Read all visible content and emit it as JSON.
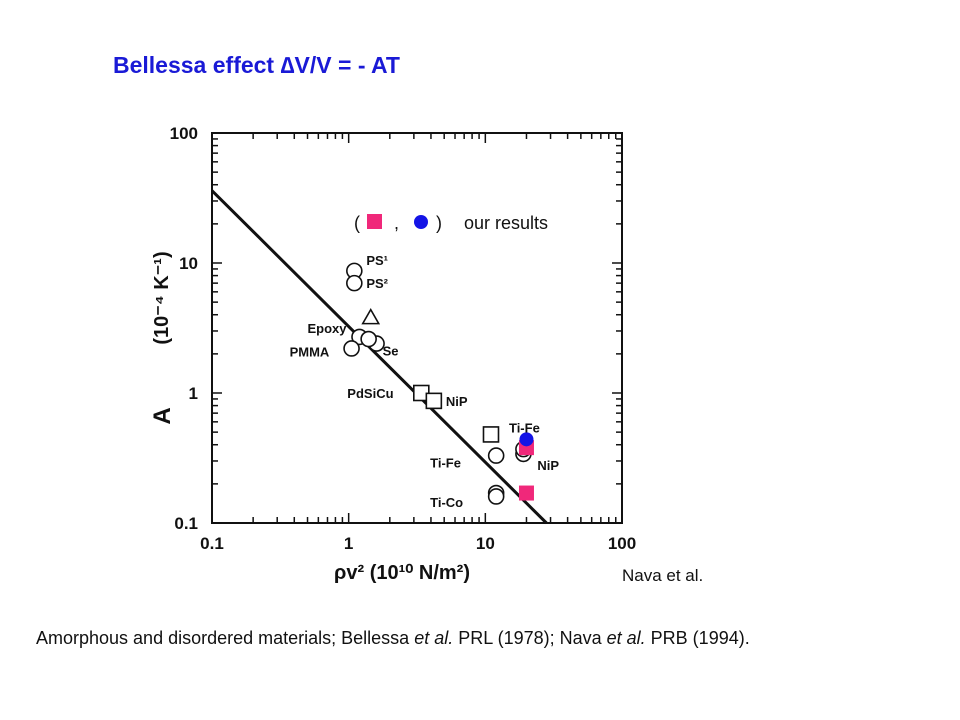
{
  "title": "Bellessa effect  ∆V/V = - AT",
  "chart_data": {
    "type": "scatter",
    "x_scale": "log",
    "y_scale": "log",
    "xlim": [
      0.1,
      100
    ],
    "ylim": [
      0.1,
      100
    ],
    "xticks": [
      {
        "value": 0.1,
        "label": "0.1"
      },
      {
        "value": 1,
        "label": "1"
      },
      {
        "value": 10,
        "label": "10"
      },
      {
        "value": 100,
        "label": "100"
      }
    ],
    "yticks": [
      {
        "value": 0.1,
        "label": "0.1"
      },
      {
        "value": 1,
        "label": "1"
      },
      {
        "value": 10,
        "label": "10"
      },
      {
        "value": 100,
        "label": "100"
      }
    ],
    "xlabel": "ρv² (10¹⁰ N/m²)",
    "ylabel": "(10⁻⁴ K⁻¹)",
    "ylabel_symbol": "A",
    "grid": false,
    "legend_text": {
      "open": "(",
      "comma": ",",
      "close": ")",
      "label": "our results"
    },
    "fit_line": {
      "x": [
        0.1,
        28
      ],
      "y": [
        36,
        0.1
      ]
    },
    "series": [
      {
        "marker": "circle-open",
        "points": [
          {
            "x": 1.1,
            "y": 8.7,
            "label": "PS¹"
          },
          {
            "x": 1.1,
            "y": 7.0,
            "label": "PS²"
          },
          {
            "x": 1.2,
            "y": 2.7,
            "label": "Epoxy"
          },
          {
            "x": 1.05,
            "y": 2.2,
            "label": "PMMA"
          },
          {
            "x": 1.6,
            "y": 2.4,
            "label": "Se"
          },
          {
            "x": 1.4,
            "y": 2.6,
            "label": ""
          },
          {
            "x": 12,
            "y": 0.33,
            "label": "Ti-Fe"
          },
          {
            "x": 19,
            "y": 0.34,
            "label": "NiP"
          },
          {
            "x": 19,
            "y": 0.37,
            "label": ""
          },
          {
            "x": 12,
            "y": 0.17,
            "label": "Ti-Co"
          },
          {
            "x": 12,
            "y": 0.16,
            "label": ""
          }
        ]
      },
      {
        "marker": "square-open",
        "points": [
          {
            "x": 3.4,
            "y": 1.0,
            "label": "PdSiCu"
          },
          {
            "x": 4.2,
            "y": 0.87,
            "label": "NiP"
          },
          {
            "x": 11,
            "y": 0.48,
            "label": "Ti-Fe"
          }
        ]
      },
      {
        "marker": "triangle-open",
        "points": [
          {
            "x": 1.45,
            "y": 3.8,
            "label": ""
          }
        ]
      },
      {
        "marker": "square-filled",
        "color": "#f0287a",
        "points": [
          {
            "x": 20,
            "y": 0.38,
            "label": ""
          },
          {
            "x": 20,
            "y": 0.17,
            "label": ""
          }
        ]
      },
      {
        "marker": "circle-filled",
        "color": "#1414e6",
        "points": [
          {
            "x": 20,
            "y": 0.44,
            "label": ""
          }
        ]
      }
    ]
  },
  "credit": "Nava et al.",
  "caption": {
    "p1": "Amorphous and disordered materials; Bellessa ",
    "et1": "et al.",
    "p2": " PRL (1978); Nava ",
    "et2": "et al.",
    "p3": " PRB (1994)."
  },
  "colors": {
    "title": "#1a1ad6",
    "our_square": "#f0287a",
    "our_circle": "#1414e6"
  }
}
